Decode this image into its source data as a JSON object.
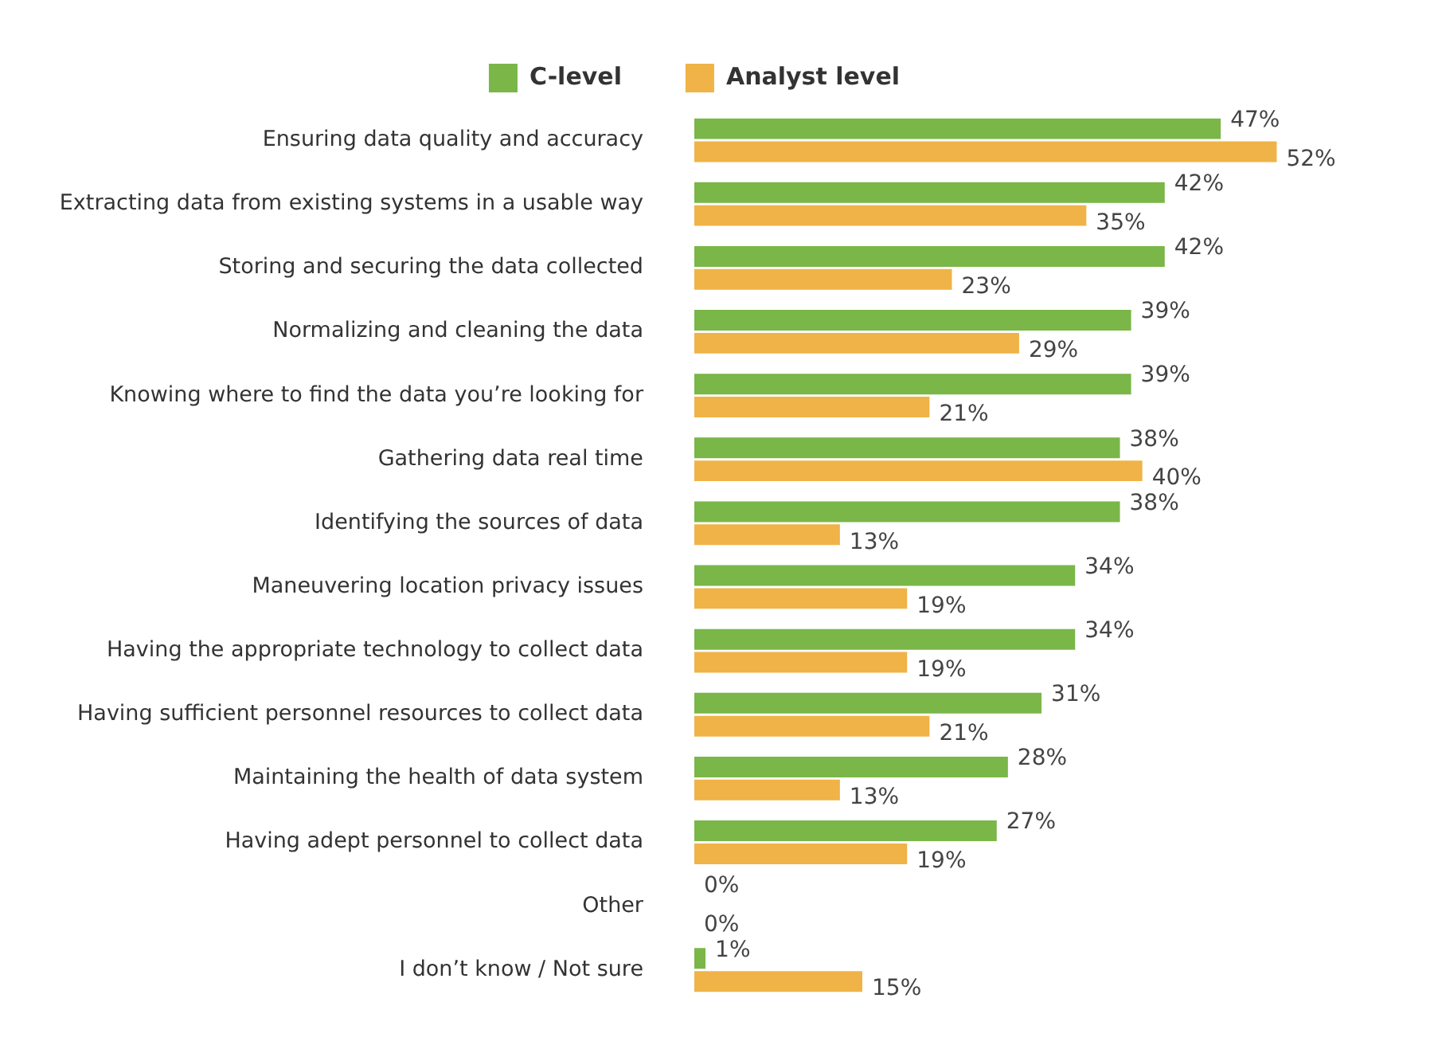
{
  "chart_data": {
    "type": "bar",
    "orientation": "horizontal",
    "legend": "top",
    "grid": false,
    "tick_labels": "y",
    "categories": [
      "Ensuring data quality and accuracy",
      "Extracting data from existing systems in a usable way",
      "Storing and securing the data collected",
      "Normalizing and cleaning the data",
      "Knowing where to find the data you’re looking for",
      "Gathering data real time",
      "Identifying the sources of data",
      "Maneuvering location privacy issues",
      "Having the appropriate technology to collect data",
      "Having sufficient personnel resources to collect data",
      "Maintaining the health of data system",
      "Having adept personnel to collect data",
      "Other",
      "I don’t know / Not sure"
    ],
    "series": [
      {
        "name": "C-level",
        "color": "#7ab648",
        "values": [
          47,
          42,
          42,
          39,
          39,
          38,
          38,
          34,
          34,
          31,
          28,
          27,
          0,
          1
        ],
        "value_labels": [
          "47%",
          "42%",
          "42%",
          "39%",
          "39%",
          "38%",
          "38%",
          "34%",
          "34%",
          "31%",
          "28%",
          "27%",
          "0%",
          "1%"
        ]
      },
      {
        "name": "Analyst level",
        "color": "#f0b347",
        "values": [
          52,
          35,
          23,
          29,
          21,
          40,
          13,
          19,
          19,
          21,
          13,
          19,
          0,
          15
        ],
        "value_labels": [
          "52%",
          "35%",
          "23%",
          "29%",
          "21%",
          "40%",
          "13%",
          "19%",
          "19%",
          "21%",
          "13%",
          "19%",
          "0%",
          "15%"
        ]
      }
    ]
  }
}
